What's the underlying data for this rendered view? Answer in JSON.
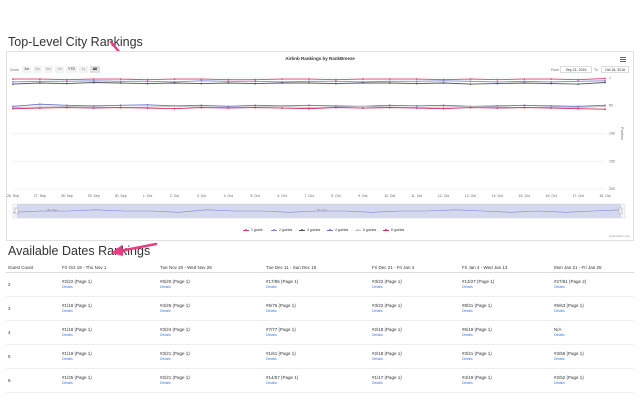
{
  "page": {
    "heading_top": "Top-Level City Rankings",
    "heading_bottom": "Available Dates Rankings"
  },
  "chart": {
    "title": "Airbnb Rankings by RankBreeze",
    "zoom_label": "Zoom",
    "zoom_buttons": [
      "1m",
      "3m",
      "6m",
      "1m",
      "YTD",
      "1y",
      "All"
    ],
    "from_label": "From",
    "from_value": "Sep 21, 2016",
    "to_label": "To",
    "to_value": "Oct 18, 2016",
    "credits": "Highcharts.com",
    "y_ticks": [
      "1",
      "50",
      "100",
      "150",
      "200"
    ],
    "y_axis_label": "Position",
    "nav_labels": [
      "26. Sep",
      "10. Oct"
    ]
  },
  "chart_data": {
    "type": "line",
    "title": "Airbnb Rankings by RankBreeze",
    "xlabel": "",
    "ylabel": "Position",
    "y_reversed": true,
    "ylim": [
      1,
      200
    ],
    "categories": [
      "26. Sep",
      "27. Sep",
      "28. Sep",
      "29. Sep",
      "30. Sep",
      "1. Oct",
      "2. Oct",
      "3. Oct",
      "4. Oct",
      "5. Oct",
      "6. Oct",
      "7. Oct",
      "8. Oct",
      "9. Oct",
      "10. Oct",
      "11. Oct",
      "12. Oct",
      "13. Oct",
      "14. Oct",
      "15. Oct",
      "16. Oct",
      "17. Oct",
      "18. Oct"
    ],
    "legend_position": "bottom",
    "series": [
      {
        "name": "1 guest",
        "color": "#e8416f",
        "values": [
          3,
          3,
          4,
          3,
          3,
          4,
          3,
          3,
          4,
          4,
          3,
          3,
          4,
          3,
          3,
          3,
          4,
          3,
          4,
          3,
          3,
          4,
          2
        ]
      },
      {
        "name": "2 guests",
        "color": "#7f86d4",
        "values": [
          8,
          7,
          7,
          6,
          7,
          7,
          8,
          6,
          7,
          7,
          8,
          7,
          7,
          8,
          7,
          7,
          6,
          7,
          8,
          7,
          8,
          7,
          6
        ]
      },
      {
        "name": "3 guests",
        "color": "#555555",
        "values": [
          12,
          10,
          11,
          9,
          10,
          11,
          10,
          11,
          10,
          11,
          10,
          10,
          11,
          10,
          10,
          11,
          10,
          12,
          11,
          10,
          11,
          12,
          9
        ]
      },
      {
        "name": "4 guests",
        "color": "#6a73c9",
        "values": [
          52,
          48,
          50,
          51,
          50,
          49,
          51,
          50,
          52,
          50,
          51,
          50,
          51,
          52,
          50,
          51,
          50,
          52,
          51,
          50,
          51,
          52,
          50
        ]
      },
      {
        "name": "5 guests",
        "color": "#c0c0c0",
        "values": [
          54,
          53,
          52,
          53,
          54,
          53,
          52,
          53,
          54,
          53,
          52,
          54,
          53,
          52,
          53,
          54,
          53,
          52,
          53,
          54,
          53,
          54,
          52
        ]
      },
      {
        "name": "6 guests",
        "color": "#d42d5a",
        "values": [
          56,
          55,
          54,
          55,
          54,
          55,
          56,
          54,
          55,
          54,
          55,
          56,
          54,
          55,
          54,
          55,
          56,
          54,
          55,
          54,
          55,
          56,
          57
        ]
      }
    ]
  },
  "table": {
    "headers": [
      "Guest Count",
      "Fri Oct 19 - Thu Nov 1",
      "Tue Nov 20 - Wed Nov 28",
      "Tue Dec 11 - Sun Dec 16",
      "Fri Dec 21 - Fri Jan 4",
      "Fri Jan 4 - Wed Jan 13",
      "Mon Jan 21 - Fri Jan 25"
    ],
    "details_label": "Details",
    "rows": [
      {
        "count": "2",
        "cells": [
          "#2/22 (Page 1)",
          "#6/20 (Page 1)",
          "#17/96 (Page 1)",
          "#3/22 (Page 1)",
          "#13/27 (Page 1)",
          "#27/81 (Page 2)"
        ]
      },
      {
        "count": "3",
        "cells": [
          "#1/18 (Page 1)",
          "#4/25 (Page 1)",
          "#5/75 (Page 1)",
          "#3/22 (Page 1)",
          "#8/21 (Page 1)",
          "#6/63 (Page 1)"
        ]
      },
      {
        "count": "4",
        "cells": [
          "#1/18 (Page 1)",
          "#3/24 (Page 1)",
          "#7/77 (Page 1)",
          "#2/18 (Page 1)",
          "#6/19 (Page 1)",
          "N/A"
        ]
      },
      {
        "count": "5",
        "cells": [
          "#1/19 (Page 1)",
          "#3/21 (Page 1)",
          "#1/61 (Page 1)",
          "#2/18 (Page 1)",
          "#3/21 (Page 1)",
          "#3/55 (Page 1)"
        ]
      },
      {
        "count": "6",
        "cells": [
          "#1/25 (Page 1)",
          "#2/21 (Page 1)",
          "#14/57 (Page 1)",
          "#1/17 (Page 1)",
          "#4/19 (Page 1)",
          "#2/52 (Page 1)"
        ]
      }
    ]
  }
}
